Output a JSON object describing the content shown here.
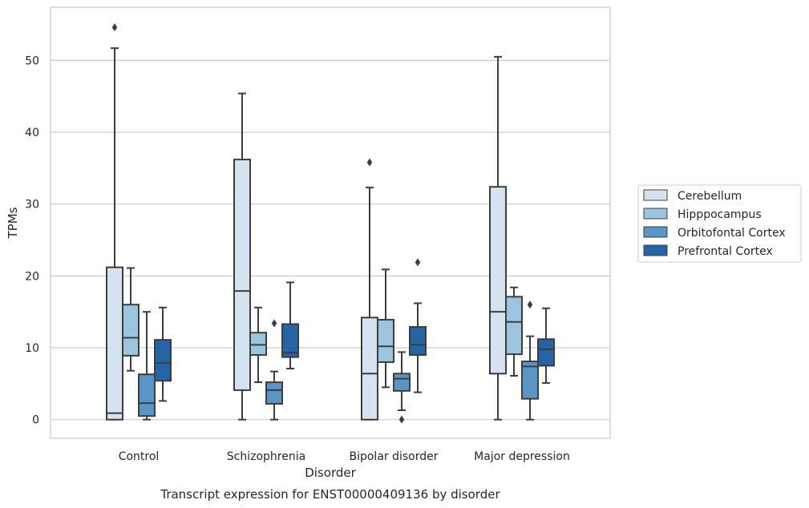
{
  "chart_data": {
    "type": "boxplot",
    "title": "Transcript expression for ENST00000409136 by disorder",
    "xlabel": "Disorder",
    "ylabel": "TPMs",
    "ylim": [
      -2.6,
      57.4
    ],
    "yticks": [
      0,
      10,
      20,
      30,
      40,
      50
    ],
    "grid": true,
    "legend_position": "right",
    "categories": [
      "Control",
      "Schizophrenia",
      "Bipolar disorder",
      "Major depression"
    ],
    "series": [
      {
        "name": "Cerebellum",
        "color": "#d5e3f1",
        "boxes": [
          {
            "whisker_low": 0,
            "q1": 0,
            "median": 0.9,
            "q3": 21.2,
            "whisker_high": 51.7,
            "outliers": [
              54.6
            ]
          },
          {
            "whisker_low": 0,
            "q1": 4.1,
            "median": 17.9,
            "q3": 36.2,
            "whisker_high": 45.4,
            "outliers": []
          },
          {
            "whisker_low": 0,
            "q1": 0,
            "median": 6.4,
            "q3": 14.2,
            "whisker_high": 32.3,
            "outliers": [
              35.8
            ]
          },
          {
            "whisker_low": 0,
            "q1": 6.4,
            "median": 15.0,
            "q3": 32.4,
            "whisker_high": 50.5,
            "outliers": []
          }
        ]
      },
      {
        "name": "Hipppocampus",
        "color": "#9cc4de",
        "boxes": [
          {
            "whisker_low": 6.8,
            "q1": 8.9,
            "median": 11.4,
            "q3": 16.0,
            "whisker_high": 21.1,
            "outliers": []
          },
          {
            "whisker_low": 5.2,
            "q1": 9.0,
            "median": 10.4,
            "q3": 12.1,
            "whisker_high": 15.6,
            "outliers": []
          },
          {
            "whisker_low": 4.5,
            "q1": 8.0,
            "median": 10.2,
            "q3": 13.9,
            "whisker_high": 20.9,
            "outliers": []
          },
          {
            "whisker_low": 6.1,
            "q1": 9.1,
            "median": 13.6,
            "q3": 17.1,
            "whisker_high": 18.4,
            "outliers": []
          }
        ]
      },
      {
        "name": "Orbitofontal Cortex",
        "color": "#5996c6",
        "boxes": [
          {
            "whisker_low": 0,
            "q1": 0.5,
            "median": 2.3,
            "q3": 6.3,
            "whisker_high": 15.0,
            "outliers": []
          },
          {
            "whisker_low": 0,
            "q1": 2.2,
            "median": 4.1,
            "q3": 5.2,
            "whisker_high": 6.7,
            "outliers": [
              13.4
            ]
          },
          {
            "whisker_low": 1.3,
            "q1": 4.0,
            "median": 5.7,
            "q3": 6.4,
            "whisker_high": 9.4,
            "outliers": [
              0
            ]
          },
          {
            "whisker_low": 0,
            "q1": 2.9,
            "median": 7.4,
            "q3": 8.1,
            "whisker_high": 11.6,
            "outliers": [
              16.0
            ]
          }
        ]
      },
      {
        "name": "Prefrontal Cortex",
        "color": "#2565a6",
        "boxes": [
          {
            "whisker_low": 2.6,
            "q1": 5.4,
            "median": 7.9,
            "q3": 11.1,
            "whisker_high": 15.6,
            "outliers": []
          },
          {
            "whisker_low": 7.1,
            "q1": 8.7,
            "median": 9.3,
            "q3": 13.3,
            "whisker_high": 19.1,
            "outliers": []
          },
          {
            "whisker_low": 3.8,
            "q1": 9.0,
            "median": 10.4,
            "q3": 12.9,
            "whisker_high": 16.2,
            "outliers": [
              21.9
            ]
          },
          {
            "whisker_low": 5.1,
            "q1": 7.5,
            "median": 9.8,
            "q3": 11.2,
            "whisker_high": 15.5,
            "outliers": []
          }
        ]
      }
    ]
  }
}
